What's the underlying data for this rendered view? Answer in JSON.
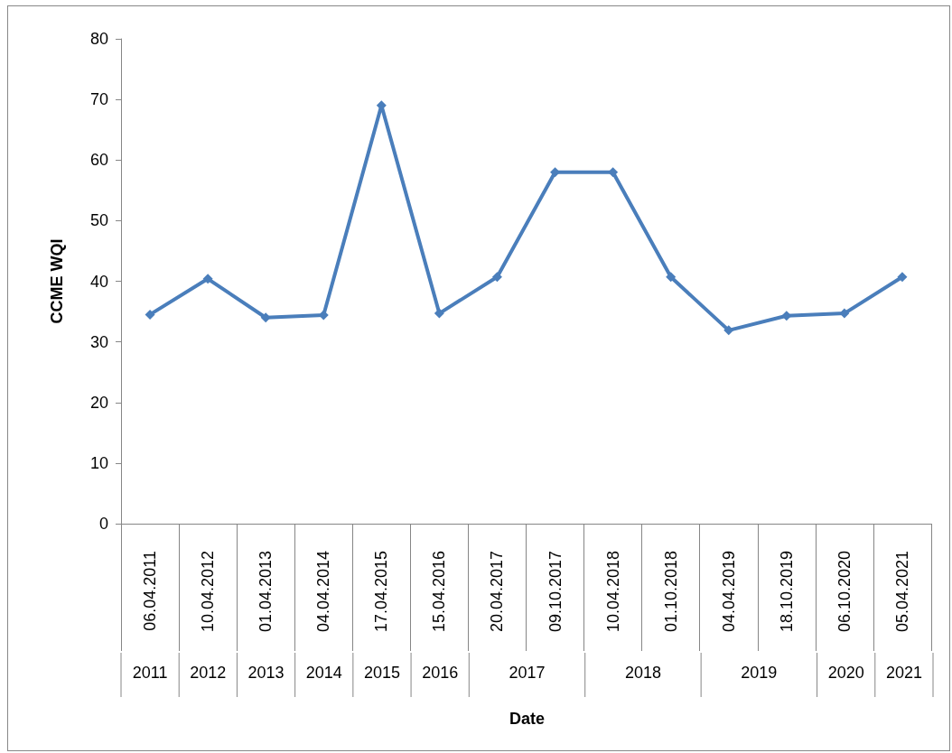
{
  "chart_data": {
    "type": "line",
    "xlabel": "Date",
    "ylabel": "CCME WQI",
    "categories": [
      "06.04.2011",
      "10.04.2012",
      "01.04.2013",
      "04.04.2014",
      "17.04.2015",
      "15.04.2016",
      "20.04.2017",
      "09.10.2017",
      "10.04.2018",
      "01.10.2018",
      "04.04.2019",
      "18.10.2019",
      "06.10.2020",
      "05.04.2021"
    ],
    "series": [
      {
        "color": "#4a7ebb",
        "values": [
          34.5,
          40.4,
          34.0,
          34.4,
          69.0,
          34.7,
          40.7,
          58.0,
          58.0,
          40.7,
          31.9,
          34.3,
          34.7,
          40.7
        ]
      }
    ],
    "ylim": [
      0,
      80
    ],
    "yticks": [
      0,
      10,
      20,
      30,
      40,
      50,
      60,
      70,
      80
    ],
    "grid": false,
    "marker": "diamond",
    "line_style": "solid",
    "annotations": [
      "2011",
      "2012",
      "2013",
      "2014",
      "2015",
      "2016",
      "2017",
      "2018",
      "2019",
      "2020",
      "2021"
    ]
  }
}
